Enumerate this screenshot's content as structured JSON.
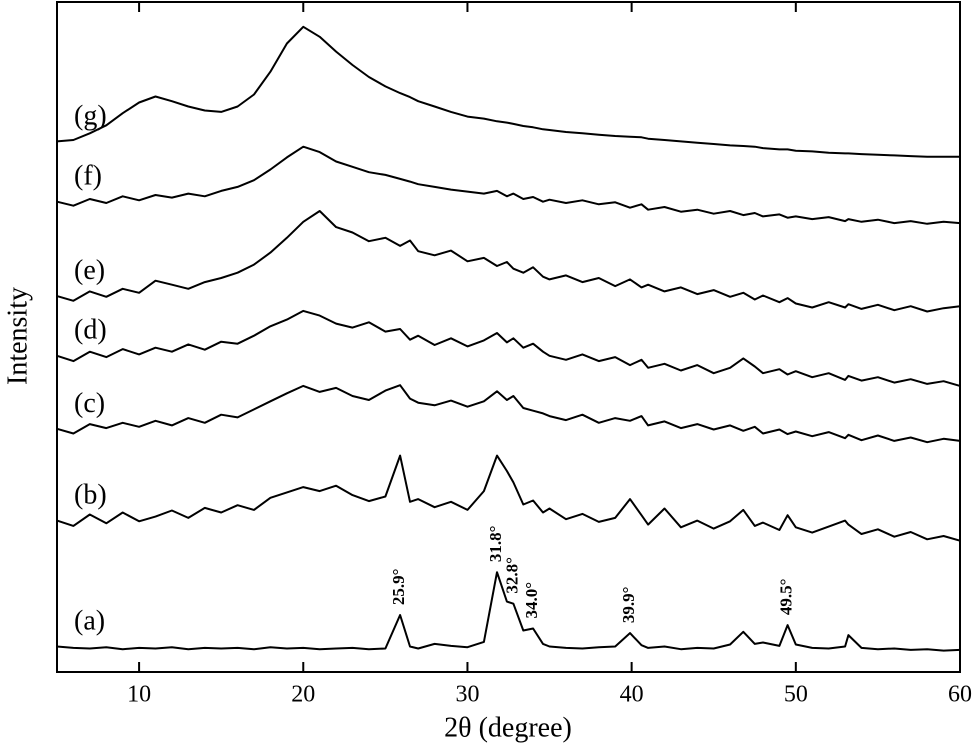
{
  "chart_data": {
    "type": "line",
    "x_label": "2θ (degree)",
    "y_label": "Intensity",
    "xlim": [
      5,
      60
    ],
    "xticks": [
      10,
      20,
      30,
      40,
      50,
      60
    ],
    "ylim": [
      0,
      100
    ],
    "x": [
      5,
      6,
      7,
      8,
      9,
      10,
      11,
      12,
      13,
      14,
      15,
      16,
      17,
      18,
      19,
      20,
      21,
      22,
      23,
      24,
      25,
      25.9,
      26.5,
      27,
      28,
      29,
      30,
      31,
      31.8,
      32.4,
      32.8,
      33.4,
      34,
      34.6,
      35,
      36,
      37,
      38,
      39,
      39.9,
      40.6,
      41,
      42,
      43,
      44,
      45,
      46,
      46.8,
      47.5,
      48,
      49,
      49.5,
      50,
      51,
      52,
      53,
      53.2,
      54,
      55,
      56,
      57,
      58,
      59,
      60
    ],
    "series": [
      {
        "name": "(a)",
        "color": "#000000",
        "values": [
          3.8,
          3.6,
          3.5,
          3.7,
          3.4,
          3.6,
          3.5,
          3.7,
          3.4,
          3.6,
          3.5,
          3.6,
          3.4,
          3.7,
          3.5,
          3.6,
          3.4,
          3.5,
          3.6,
          3.4,
          3.5,
          8.5,
          3.8,
          3.5,
          4.2,
          3.9,
          3.7,
          4.5,
          14.9,
          10.5,
          10.2,
          6.2,
          6.5,
          4.2,
          3.8,
          3.6,
          3.5,
          3.7,
          3.8,
          5.8,
          4.0,
          3.6,
          3.8,
          3.4,
          3.6,
          3.5,
          4.1,
          6.0,
          4.2,
          4.4,
          3.9,
          7.0,
          4.1,
          3.6,
          3.5,
          3.8,
          5.5,
          3.6,
          3.4,
          3.5,
          3.3,
          3.4,
          3.2,
          3.3
        ]
      },
      {
        "name": "(b)",
        "color": "#000000",
        "values": [
          22.6,
          21.8,
          23.5,
          22.2,
          23.8,
          22.5,
          23.2,
          24.1,
          23,
          24.5,
          23.8,
          24.9,
          24.2,
          26,
          26.8,
          27.6,
          27,
          27.8,
          26.4,
          25.5,
          26.2,
          32.3,
          25.4,
          25.8,
          24.6,
          25.4,
          24.2,
          27,
          32.3,
          30,
          28.3,
          25,
          25.6,
          23.8,
          24.4,
          22.8,
          23.6,
          22.4,
          23,
          25.8,
          23.4,
          22,
          24.4,
          21.6,
          22.6,
          21.4,
          22.5,
          24.2,
          21.8,
          22.3,
          21.2,
          23.4,
          21.6,
          20.8,
          21.7,
          22.6,
          22,
          20.6,
          21.3,
          20.2,
          20.9,
          19.8,
          20.3,
          19.6
        ]
      },
      {
        "name": "(c)",
        "color": "#000000",
        "values": [
          36.3,
          35.6,
          37,
          36.4,
          37.2,
          36.6,
          37.5,
          36.8,
          37.9,
          37.2,
          38.4,
          38,
          39.2,
          40.4,
          41.6,
          42.7,
          41.8,
          42.4,
          41.2,
          40.6,
          42,
          42.8,
          40.8,
          40.2,
          39.8,
          40.5,
          39.6,
          40.4,
          41.9,
          40.6,
          41.2,
          39.4,
          39,
          38.6,
          38.2,
          37.6,
          38.4,
          37.2,
          37.9,
          37.5,
          38.2,
          36.8,
          37.4,
          36.4,
          37,
          36.2,
          36.8,
          36,
          36.6,
          35.6,
          36.2,
          35.5,
          35.9,
          35.2,
          35.8,
          34.9,
          35.4,
          34.6,
          35.3,
          34.5,
          35,
          34.3,
          34.8,
          34.5
        ]
      },
      {
        "name": "(d)",
        "color": "#000000",
        "values": [
          47.2,
          46.4,
          47.8,
          47,
          48.2,
          47.4,
          48.4,
          47.8,
          48.9,
          48.1,
          49.3,
          49,
          50.2,
          51.6,
          52.6,
          53.9,
          53.2,
          52,
          51.4,
          52.2,
          50.8,
          51.2,
          49.6,
          50.2,
          48.8,
          49.8,
          48.6,
          49.5,
          50.6,
          49.2,
          49.8,
          48.4,
          49,
          47.8,
          47.2,
          46.6,
          47.4,
          46.4,
          47,
          45.8,
          46.6,
          45.4,
          46,
          45,
          45.8,
          44.6,
          45.4,
          46.8,
          45.6,
          44.6,
          45.2,
          44.4,
          44.9,
          44,
          44.6,
          43.6,
          44.2,
          43.5,
          44,
          43.2,
          43.7,
          43,
          43.4,
          42.7
        ]
      },
      {
        "name": "(e)",
        "color": "#000000",
        "values": [
          56.1,
          55.4,
          56.8,
          56,
          57.2,
          56.6,
          58.4,
          57.8,
          57.2,
          58.2,
          58.8,
          59.6,
          60.8,
          62.6,
          64.8,
          67.2,
          68.8,
          66.4,
          65.6,
          64.3,
          64.8,
          63.6,
          64.4,
          62.8,
          62.2,
          62.9,
          61.3,
          61.8,
          60.6,
          61.2,
          60.2,
          59.6,
          60.4,
          59,
          58.6,
          59.2,
          58.2,
          58.8,
          57.6,
          58.6,
          57.4,
          57.8,
          56.8,
          57.4,
          56.4,
          57,
          56,
          56.6,
          55.6,
          56.2,
          55.2,
          55.8,
          55,
          54.4,
          55.2,
          54.4,
          54.9,
          54.2,
          54.8,
          54,
          54.6,
          53.8,
          54.3,
          54.6
        ]
      },
      {
        "name": "(f)",
        "color": "#000000",
        "values": [
          70.2,
          69.6,
          70.6,
          70,
          71,
          70.4,
          71.2,
          70.8,
          71.4,
          71,
          71.8,
          72.4,
          73.4,
          75,
          76.8,
          78.4,
          77.6,
          76.2,
          75.4,
          74.6,
          74.2,
          73.6,
          73.2,
          72.8,
          72.4,
          72,
          71.7,
          71.4,
          71.8,
          71,
          71.4,
          70.6,
          70.9,
          70.2,
          70.5,
          70,
          70.4,
          69.8,
          70.1,
          69.3,
          69.8,
          69,
          69.4,
          68.7,
          69,
          68.4,
          68.8,
          68.2,
          68.5,
          68,
          68.3,
          67.8,
          68,
          67.6,
          67.9,
          67.3,
          67.6,
          67.2,
          67.5,
          67,
          67.3,
          66.9,
          67.2,
          67
        ]
      },
      {
        "name": "(g)",
        "color": "#000000",
        "values": [
          79.2,
          79.4,
          80.4,
          81.6,
          83.4,
          85,
          85.9,
          85.2,
          84.4,
          83.8,
          83.6,
          84.4,
          86.2,
          89.6,
          93.8,
          96.3,
          94.8,
          92.6,
          90.6,
          88.8,
          87.4,
          86.4,
          85.8,
          85.2,
          84.4,
          83.6,
          82.9,
          82.6,
          82.2,
          82,
          81.8,
          81.5,
          81.3,
          81,
          80.9,
          80.6,
          80.4,
          80.2,
          80,
          79.9,
          79.8,
          79.6,
          79.4,
          79.2,
          79,
          78.8,
          78.6,
          78.5,
          78.4,
          78.2,
          78,
          78,
          77.8,
          77.7,
          77.5,
          77.4,
          77.4,
          77.3,
          77.2,
          77.1,
          77,
          76.9,
          76.9,
          76.9
        ]
      }
    ],
    "annotations": [
      {
        "text": "25.9°",
        "x": 25.9
      },
      {
        "text": "31.8°",
        "x": 31.8
      },
      {
        "text": "32.8°",
        "x": 32.8
      },
      {
        "text": "34.0°",
        "x": 34
      },
      {
        "text": "39.9°",
        "x": 39.9
      },
      {
        "text": "49.5°",
        "x": 49.5
      }
    ]
  }
}
